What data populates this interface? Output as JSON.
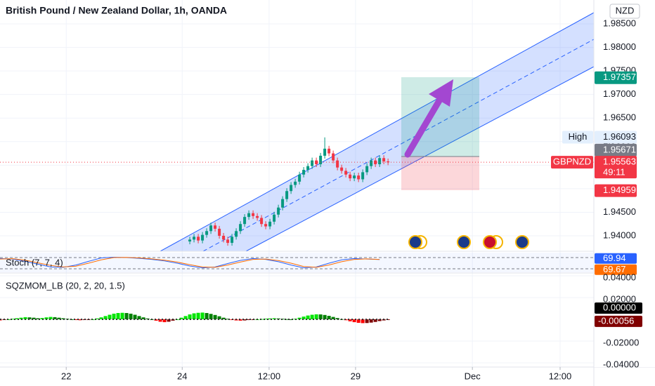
{
  "header": {
    "title": "British Pound / New Zealand Dollar, 1h, OANDA",
    "currency": "NZD"
  },
  "chart_data": [
    {
      "type": "candlestick",
      "x": [
        45,
        46,
        47,
        48,
        49,
        50,
        51,
        52,
        53,
        54,
        55,
        56,
        57,
        58,
        59,
        60,
        61,
        62,
        63,
        64,
        65,
        66,
        67,
        68,
        69,
        70,
        71,
        72,
        73,
        74,
        75,
        76,
        77,
        78,
        79,
        80,
        81,
        82,
        83,
        84,
        85,
        86,
        87,
        88,
        89,
        90,
        91,
        92
      ],
      "open": [
        1.9388,
        1.9392,
        1.9398,
        1.939,
        1.9402,
        1.941,
        1.9422,
        1.9415,
        1.94,
        1.9392,
        1.9385,
        1.9398,
        1.941,
        1.9425,
        1.944,
        1.9448,
        1.9442,
        1.9438,
        1.9425,
        1.942,
        1.943,
        1.9445,
        1.946,
        1.9478,
        1.9495,
        1.9508,
        1.9515,
        1.953,
        1.954,
        1.9548,
        1.956,
        1.9552,
        1.957,
        1.9585,
        1.9575,
        1.956,
        1.9545,
        1.9538,
        1.953,
        1.9522,
        1.9528,
        1.952,
        1.9535,
        1.9548,
        1.956,
        1.9552,
        1.9565,
        1.9558
      ],
      "high": [
        1.9398,
        1.9404,
        1.9404,
        1.9408,
        1.9416,
        1.9428,
        1.9428,
        1.9421,
        1.9406,
        1.9398,
        1.9404,
        1.9416,
        1.9431,
        1.9446,
        1.9454,
        1.9454,
        1.9448,
        1.9444,
        1.9431,
        1.9436,
        1.9451,
        1.9466,
        1.9484,
        1.9501,
        1.9514,
        1.9521,
        1.9536,
        1.9546,
        1.9554,
        1.9566,
        1.9566,
        1.9576,
        1.9609,
        1.9591,
        1.9581,
        1.9566,
        1.9551,
        1.9544,
        1.9536,
        1.9534,
        1.9534,
        1.9541,
        1.9554,
        1.9566,
        1.9566,
        1.9571,
        1.9571,
        1.9564
      ],
      "low": [
        1.9382,
        1.9386,
        1.9384,
        1.9384,
        1.9396,
        1.9404,
        1.9409,
        1.9394,
        1.9386,
        1.9379,
        1.9379,
        1.9392,
        1.9404,
        1.9419,
        1.9434,
        1.9436,
        1.9432,
        1.9419,
        1.9414,
        1.9414,
        1.9424,
        1.9439,
        1.9454,
        1.9472,
        1.9489,
        1.9502,
        1.9509,
        1.9524,
        1.9534,
        1.9542,
        1.9546,
        1.9546,
        1.9564,
        1.9569,
        1.9554,
        1.9539,
        1.9532,
        1.9524,
        1.9516,
        1.9516,
        1.9514,
        1.9514,
        1.9529,
        1.9542,
        1.9546,
        1.9546,
        1.9552,
        1.955
      ],
      "close": [
        1.9392,
        1.9398,
        1.939,
        1.9402,
        1.941,
        1.9422,
        1.9415,
        1.94,
        1.9392,
        1.9385,
        1.9398,
        1.941,
        1.9425,
        1.944,
        1.9448,
        1.9442,
        1.9438,
        1.9425,
        1.942,
        1.943,
        1.9445,
        1.946,
        1.9478,
        1.9495,
        1.9508,
        1.9515,
        1.953,
        1.954,
        1.9548,
        1.956,
        1.9552,
        1.957,
        1.9585,
        1.9575,
        1.956,
        1.9545,
        1.9538,
        1.953,
        1.9522,
        1.9528,
        1.952,
        1.9535,
        1.9548,
        1.956,
        1.9552,
        1.9565,
        1.9558,
        1.9556
      ],
      "up_color": "#089981",
      "down_color": "#f23645",
      "xlim": [
        0,
        140.8
      ],
      "xticks": [
        {
          "value": 15.7,
          "label": "22"
        },
        {
          "value": 43.2,
          "label": "24"
        },
        {
          "value": 63.8,
          "label": "12:00"
        },
        {
          "value": 84.3,
          "label": "29"
        },
        {
          "value": 112,
          "label": "Dec"
        },
        {
          "value": 132.8,
          "label": "12:00"
        }
      ],
      "ylim": [
        1.93672,
        1.99007
      ],
      "yticks": [
        {
          "value": 1.94,
          "label": "1.94000"
        },
        {
          "value": 1.945,
          "label": "1.94500"
        },
        {
          "value": 1.95,
          "label": "1.95000"
        },
        {
          "value": 1.955,
          "label": "1.95500"
        },
        {
          "value": 1.96,
          "label": "1.96000"
        },
        {
          "value": 1.965,
          "label": "1.96500"
        },
        {
          "value": 1.97,
          "label": "1.97000"
        },
        {
          "value": 1.975,
          "label": "1.97500"
        },
        {
          "value": 1.98,
          "label": "1.98000"
        },
        {
          "value": 1.985,
          "label": "1.98500"
        }
      ],
      "grid": true,
      "price_tags": [
        {
          "value": 1.97357,
          "color": "#089981",
          "text_color": "#ffffff"
        },
        {
          "value": 1.96093,
          "name": "High",
          "color": "#e3effd",
          "text_color": "#131722"
        },
        {
          "value": 1.95671,
          "color": "#787b86",
          "text_color": "#ffffff"
        },
        {
          "value": 1.95563,
          "name": "GBPNZD",
          "countdown": "49:11",
          "color": "#f23645",
          "text_color": "#ffffff"
        },
        {
          "value": 1.94959,
          "color": "#f23645",
          "text_color": "#ffffff"
        }
      ]
    },
    {
      "type": "stochastic",
      "title": "Stoch (7, 7, 4)",
      "x": [
        0,
        3,
        6,
        9,
        12,
        15,
        18,
        21,
        24,
        27,
        30,
        33,
        36,
        39,
        42,
        45,
        48,
        51,
        54,
        57,
        60,
        63,
        66,
        69,
        72,
        75,
        78,
        81,
        84,
        87,
        90
      ],
      "series": [
        {
          "color": "#2962ff",
          "values": [
            75,
            72,
            60,
            45,
            30,
            28,
            40,
            60,
            78,
            82,
            80,
            76,
            70,
            62,
            50,
            35,
            25,
            30,
            48,
            65,
            75,
            70,
            58,
            40,
            25,
            30,
            50,
            68,
            75,
            72,
            69.94
          ]
        },
        {
          "color": "#ff6d00",
          "values": [
            72,
            74,
            66,
            52,
            38,
            30,
            34,
            50,
            68,
            80,
            81,
            78,
            73,
            66,
            56,
            42,
            30,
            28,
            40,
            56,
            70,
            72,
            64,
            50,
            32,
            28,
            40,
            58,
            70,
            73,
            69.67
          ]
        }
      ],
      "ylim": [
        0,
        100
      ],
      "bands": [
        80,
        20
      ]
    },
    {
      "type": "histogram",
      "title": "SQZMOM_LB (20, 2, 20, 1.5)",
      "values": [
        -0.001,
        -0.0005,
        0,
        0.0005,
        0.001,
        0.0015,
        0.002,
        0.0018,
        0.0015,
        0.001,
        0.0012,
        0.0018,
        0.0022,
        0.002,
        0.0015,
        0.001,
        0.0005,
        0,
        -0.0005,
        -0.0008,
        -0.0006,
        -0.0003,
        0,
        0.0008,
        0.0018,
        0.003,
        0.0042,
        0.0052,
        0.0058,
        0.006,
        0.0058,
        0.0052,
        0.0042,
        0.003,
        0.0018,
        0.0008,
        0,
        -0.0012,
        -0.0022,
        -0.0026,
        -0.0022,
        -0.0012,
        0,
        0.0015,
        0.003,
        0.0045,
        0.0055,
        0.006,
        0.0062,
        0.0058,
        0.005,
        0.004,
        0.0028,
        0.0015,
        0.0005,
        -0.0005,
        -0.001,
        -0.0012,
        -0.001,
        -0.0006,
        -0.0003,
        0,
        0.0003,
        0.0006,
        0.0008,
        0.001,
        0.0008,
        0.0005,
        0.0002,
        0,
        0.0005,
        0.0015,
        0.0025,
        0.0035,
        0.0042,
        0.0046,
        0.0045,
        0.004,
        0.0032,
        0.0022,
        0.0012,
        0.0002,
        -0.0008,
        -0.0018,
        -0.0026,
        -0.0032,
        -0.0035,
        -0.0034,
        -0.003,
        -0.0024,
        -0.0016,
        -0.001,
        -0.00056
      ],
      "colors": {
        "up_rising": "#00e600",
        "up_falling": "#008000",
        "down_falling": "#ff0000",
        "down_rising": "#800000"
      },
      "ylim": [
        -0.04387,
        0.04194
      ],
      "yticks": [
        {
          "value": 0.04,
          "label": "0.04000"
        },
        {
          "value": 0.02,
          "label": "0.02000"
        },
        {
          "value": -0.02,
          "label": "-0.02000"
        },
        {
          "value": -0.04,
          "label": "-0.04000"
        }
      ],
      "zero_tag": {
        "value": 0,
        "label": "0.00000"
      }
    }
  ]
}
